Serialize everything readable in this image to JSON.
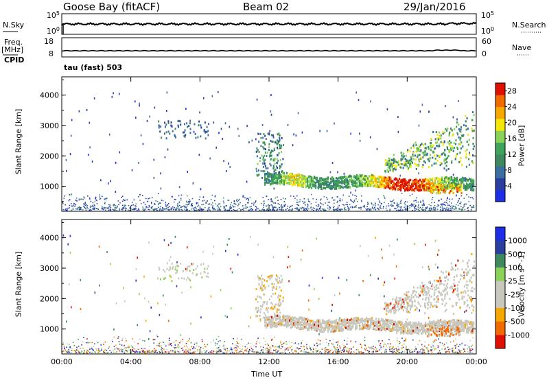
{
  "header": {
    "station": "Goose Bay (fitACF)",
    "beam": "Beam 02",
    "date": "29/Jan/2016"
  },
  "panels": {
    "nsky_label": "N.Sky",
    "nsearch_label": "N.Search",
    "noise_ticks": [
      "10^5",
      "10^0"
    ],
    "noise_ticks_right": [
      "10^5",
      "10^0"
    ],
    "freq_label": "Freq.",
    "freq_unit": "[MHz]",
    "freq_ticks": [
      "18",
      "8"
    ],
    "nave_label": "Nave",
    "nave_ticks": [
      "60",
      "0"
    ],
    "cpid_label": "CPID",
    "cpid_text": "tau (fast) 503"
  },
  "colors": {
    "power": [
      "#1c2fe6",
      "#2a3f9d",
      "#3c6ea0",
      "#3e8a5e",
      "#3fa35a",
      "#8bd25a",
      "#f5e60a",
      "#f7a800",
      "#f06a00",
      "#e01000"
    ],
    "velocity": [
      "#e01000",
      "#f06a00",
      "#f7a800",
      "#c8c8be",
      "#c8c8be",
      "#8bd25a",
      "#3e8a5e",
      "#2a3f9d",
      "#1c2fe6"
    ]
  },
  "chart_data": [
    {
      "type": "heatmap",
      "name": "power",
      "xlabel": "",
      "ylabel": "Slant Range [km]",
      "xlim": [
        "00:00",
        "24:00"
      ],
      "ylim": [
        180,
        4600
      ],
      "yticks": [
        1000,
        2000,
        3000,
        4000
      ],
      "colorbar": {
        "label": "Power [dB]",
        "ticks": [
          4,
          8,
          12,
          16,
          20,
          24,
          28
        ],
        "range": [
          0,
          30
        ]
      }
    },
    {
      "type": "heatmap",
      "name": "velocity",
      "xlabel": "Time UT",
      "ylabel": "Slant Range [km]",
      "xlim": [
        "00:00",
        "24:00"
      ],
      "ylim": [
        180,
        4600
      ],
      "yticks": [
        1000,
        2000,
        3000,
        4000
      ],
      "xticks": [
        "00:00",
        "04:00",
        "08:00",
        "12:00",
        "16:00",
        "20:00",
        "00:00"
      ],
      "colorbar": {
        "label": "Velocity [m s^-1]",
        "ticks": [
          "1000",
          "500",
          "100",
          "25",
          "-25",
          "-100",
          "-500",
          "-1000"
        ]
      }
    }
  ]
}
